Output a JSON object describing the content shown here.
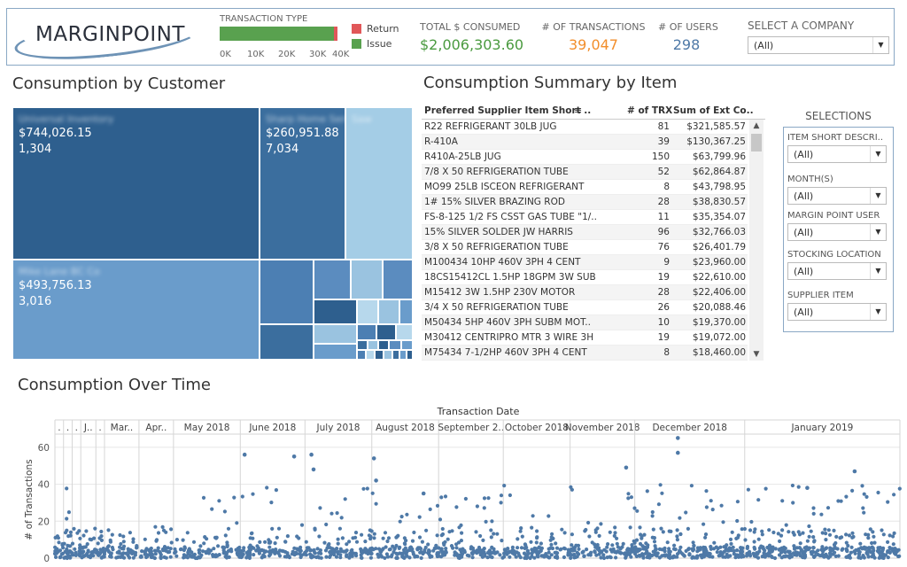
{
  "header": {
    "logo_text": "MARGINPOINT",
    "transaction_type": {
      "title": "TRANSACTION TYPE",
      "axis_ticks": [
        "0K",
        "10K",
        "20K",
        "30K",
        "40K"
      ],
      "issue_value": 38000,
      "return_value": 1047,
      "axis_max": 40000,
      "legend": [
        {
          "label": "Return",
          "color": "#e15759"
        },
        {
          "label": "Issue",
          "color": "#59a14f"
        }
      ]
    },
    "kpis": {
      "total": {
        "label": "TOTAL $ CONSUMED",
        "value": "$2,006,303.60",
        "color": "#4a9a3f"
      },
      "transactions": {
        "label": "# OF TRANSACTIONS",
        "value": "39,047",
        "color": "#f28e2b"
      },
      "users": {
        "label": "# OF USERS",
        "value": "298",
        "color": "#4e79a7"
      }
    },
    "company": {
      "label": "SELECT A COMPANY",
      "value": "(All)"
    }
  },
  "customer": {
    "title": "Consumption by Customer",
    "tiles": [
      {
        "name": "Universal Inventory",
        "amount": "$744,026.15",
        "count": "1,304",
        "color": "#2e5f8e"
      },
      {
        "name": "Sharp Home Services",
        "amount": "$260,951.88",
        "count": "7,034",
        "color": "#3b6e9e"
      },
      {
        "name": "Saw",
        "amount": "",
        "count": "",
        "color": "#a4cde6"
      },
      {
        "name": "Mike Lane BC Co",
        "amount": "$493,756.13",
        "count": "3,016",
        "color": "#6a9ccb"
      }
    ]
  },
  "item_summary": {
    "title": "Consumption Summary by Item",
    "columns": [
      "Preferred Supplier Item Short ..",
      "# of TRX",
      "Sum of Ext Co.."
    ],
    "rows": [
      [
        "R22 REFRIGERANT 30LB JUG",
        "81",
        "$321,585.57"
      ],
      [
        "R-410A",
        "39",
        "$130,367.25"
      ],
      [
        "R410A-25LB JUG",
        "150",
        "$63,799.96"
      ],
      [
        "7/8  X 50  REFRIGERATION TUBE",
        "52",
        "$62,864.87"
      ],
      [
        "MO99 25LB ISCEON REFRIGERANT",
        "8",
        "$43,798.95"
      ],
      [
        "1# 15% SILVER BRAZING ROD",
        "28",
        "$38,830.57"
      ],
      [
        "FS-8-125 1/2 FS CSST GAS TUBE  \"1/..",
        "11",
        "$35,354.07"
      ],
      [
        "15% SILVER SOLDER JW HARRIS",
        "96",
        "$32,766.03"
      ],
      [
        "3/8  X 50  REFRIGERATION TUBE",
        "76",
        "$26,401.79"
      ],
      [
        "M100434 10HP 460V 3PH 4 CENT",
        "9",
        "$23,960.00"
      ],
      [
        "18CS15412CL 1.5HP 18GPM 3W SUB",
        "19",
        "$22,610.00"
      ],
      [
        "M15412 3W 1.5HP 230V MOTOR",
        "28",
        "$22,406.00"
      ],
      [
        "3/4  X 50  REFRIGERATION TUBE",
        "26",
        "$20,088.46"
      ],
      [
        "M50434 5HP 460V 3PH SUBM MOT..",
        "10",
        "$19,370.00"
      ],
      [
        "M30412 CENTRIPRO MTR 3 WIRE 3H",
        "19",
        "$19,072.00"
      ],
      [
        "M75434 7-1/2HP 460V 3PH 4 CENT",
        "8",
        "$18,460.00"
      ]
    ]
  },
  "selections": {
    "title": "SELECTIONS",
    "filters": [
      {
        "label": "ITEM SHORT DESCRI..",
        "value": "(All)"
      },
      {
        "label": "MONTH(S)",
        "value": "(All)"
      },
      {
        "label": "MARGIN POINT USER",
        "value": "(All)"
      },
      {
        "label": "STOCKING LOCATION",
        "value": "(All)"
      },
      {
        "label": "SUPPLIER ITEM",
        "value": "(All)"
      }
    ]
  },
  "time": {
    "title": "Consumption Over Time"
  },
  "chart_data": {
    "type": "scatter",
    "title": "",
    "xlabel": "Transaction Date",
    "ylabel": "# of Transactions",
    "ylim": [
      0,
      70
    ],
    "yticks": [
      0,
      20,
      40,
      60
    ],
    "grid": true,
    "point_color": "#4e79a7",
    "months": [
      {
        "label": ".",
        "days": 4
      },
      {
        "label": ".",
        "days": 4
      },
      {
        "label": ".",
        "days": 4
      },
      {
        "label": "J..",
        "days": 7
      },
      {
        "label": ".",
        "days": 4
      },
      {
        "label": "Mar..",
        "days": 16
      },
      {
        "label": "Apr..",
        "days": 16
      },
      {
        "label": "May 2018",
        "days": 31
      },
      {
        "label": "June 2018",
        "days": 30
      },
      {
        "label": "July 2018",
        "days": 31
      },
      {
        "label": "August 2018",
        "days": 31
      },
      {
        "label": "September 2..",
        "days": 30
      },
      {
        "label": "October 2018",
        "days": 31
      },
      {
        "label": "November 2018",
        "days": 30
      },
      {
        "label": "December 2018",
        "days": 51
      },
      {
        "label": "January 2019",
        "days": 72
      }
    ],
    "notable_points": [
      {
        "x": "2018-06-02",
        "y": 56
      },
      {
        "x": "2018-06-25",
        "y": 55
      },
      {
        "x": "2018-07-03",
        "y": 56
      },
      {
        "x": "2018-07-04",
        "y": 48
      },
      {
        "x": "2018-08-01",
        "y": 54
      },
      {
        "x": "2018-08-02",
        "y": 42
      },
      {
        "x": "2018-08-24",
        "y": 35
      },
      {
        "x": "2018-11-26",
        "y": 49
      },
      {
        "x": "2018-12-20",
        "y": 65
      },
      {
        "x": "2018-12-20",
        "y": 57
      },
      {
        "x": "2019-01-29",
        "y": 38
      },
      {
        "x": "2019-02-20",
        "y": 47
      }
    ]
  }
}
